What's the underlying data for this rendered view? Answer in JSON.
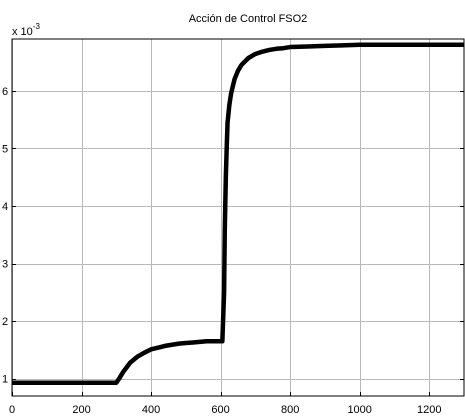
{
  "chart_data": {
    "type": "line",
    "title": "Acción de Control  FSO2",
    "xlabel": "",
    "ylabel": "",
    "y_multiplier": "x 10",
    "y_exponent": "-3",
    "xlim": [
      0,
      1300
    ],
    "ylim": [
      0.7,
      6.9
    ],
    "x_ticks": [
      0,
      200,
      400,
      600,
      800,
      1000,
      1200
    ],
    "y_ticks": [
      1,
      2,
      3,
      4,
      5,
      6
    ],
    "grid": true,
    "series": [
      {
        "color": "#000000",
        "x": [
          0,
          100,
          200,
          300,
          310,
          320,
          330,
          340,
          350,
          360,
          380,
          400,
          420,
          440,
          460,
          480,
          500,
          520,
          540,
          560,
          580,
          600,
          605,
          610,
          612,
          615,
          618,
          620,
          625,
          630,
          640,
          650,
          660,
          680,
          700,
          720,
          740,
          760,
          780,
          800,
          850,
          900,
          950,
          1000,
          1100,
          1200,
          1300
        ],
        "values": [
          0.93,
          0.93,
          0.93,
          0.93,
          1.02,
          1.12,
          1.2,
          1.28,
          1.33,
          1.38,
          1.45,
          1.51,
          1.54,
          1.57,
          1.59,
          1.61,
          1.62,
          1.63,
          1.64,
          1.65,
          1.65,
          1.65,
          1.65,
          2.5,
          3.6,
          4.5,
          5.1,
          5.45,
          5.75,
          5.95,
          6.2,
          6.35,
          6.45,
          6.57,
          6.64,
          6.68,
          6.71,
          6.73,
          6.74,
          6.76,
          6.77,
          6.78,
          6.79,
          6.8,
          6.8,
          6.8,
          6.8
        ]
      }
    ]
  }
}
